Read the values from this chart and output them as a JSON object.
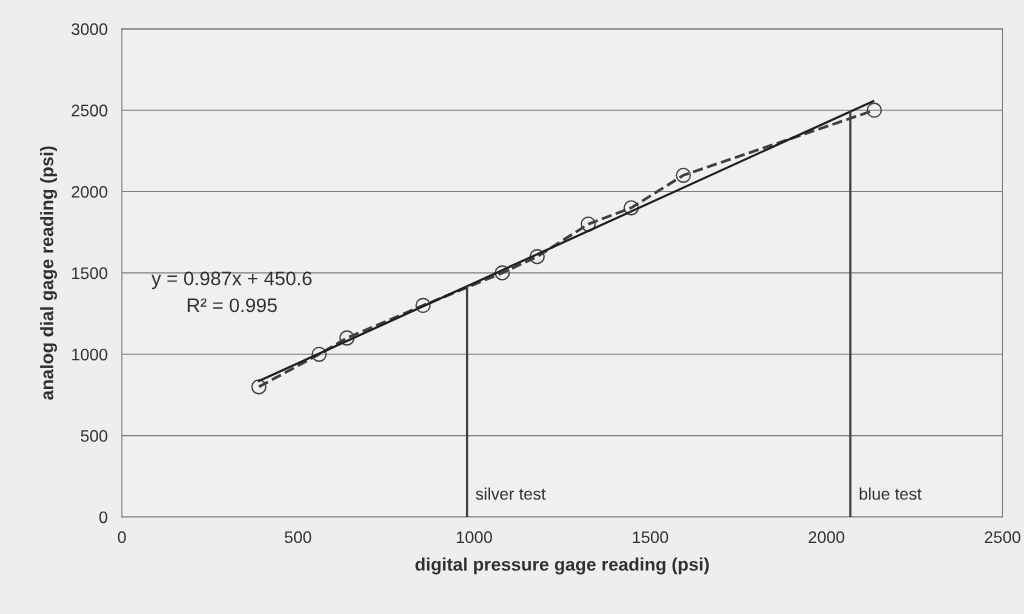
{
  "chart_data": {
    "type": "line",
    "xlabel": "digital pressure gage reading (psi)",
    "ylabel": "analog dial gage reading (psi)",
    "xlim": [
      0,
      2500
    ],
    "xticks": [
      0,
      500,
      1000,
      1500,
      2000,
      2500
    ],
    "ylim": [
      0,
      3000
    ],
    "yticks": [
      0,
      500,
      1000,
      1500,
      2000,
      2500,
      3000
    ],
    "grid": "y",
    "series": [
      {
        "color": "#404040",
        "marker": "circle",
        "line_style": "dashed",
        "x": [
          389,
          560,
          639,
          855,
          1080,
          1179,
          1324,
          1446,
          1594,
          2136
        ],
        "values": [
          800,
          1000,
          1100,
          1300,
          1500,
          1600,
          1800,
          1900,
          2100,
          2500
        ]
      },
      {
        "color": "#202020",
        "line_style": "solid",
        "x": [
          389,
          2133
        ],
        "values": [
          835,
          2556
        ]
      },
      {
        "name": "silver test",
        "color": "#404040",
        "line_style": "solid",
        "x": [
          980,
          980
        ],
        "values": [
          0,
          1418
        ]
      },
      {
        "name": "blue test",
        "color": "#404040",
        "line_style": "solid",
        "x": [
          2068,
          2068
        ],
        "values": [
          0,
          2492
        ]
      }
    ],
    "annotations": [
      "y = 0.987x + 450.6",
      "R² = 0.995"
    ]
  }
}
